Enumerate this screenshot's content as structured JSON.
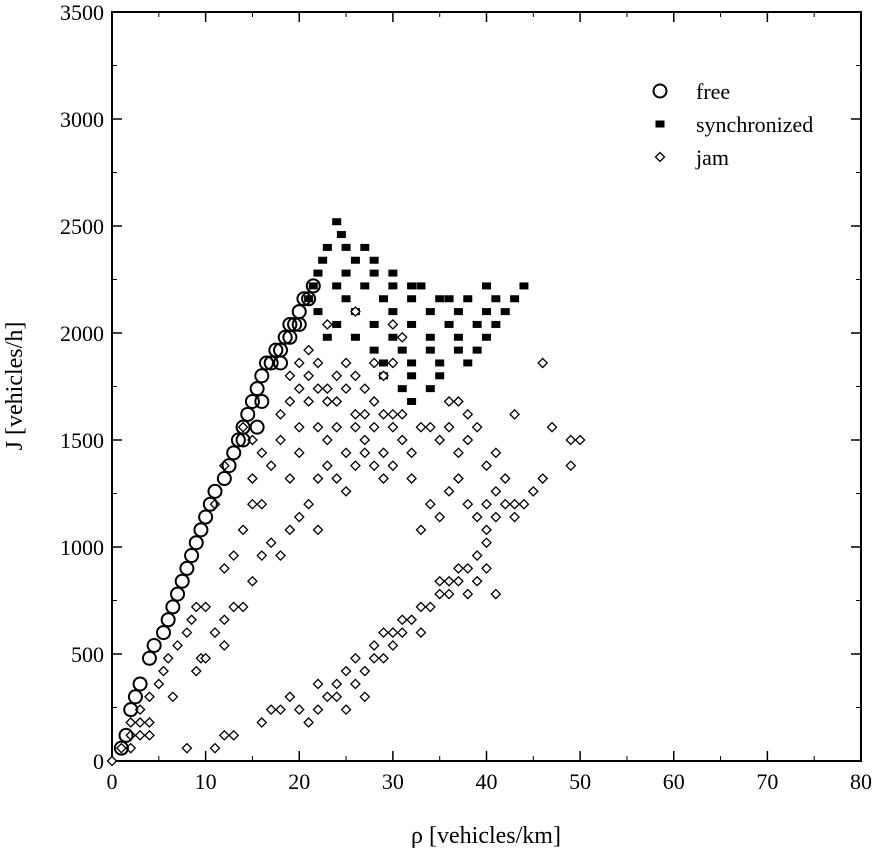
{
  "chart_data": {
    "type": "scatter",
    "title": "",
    "xlabel": "ρ [vehicles/km]",
    "ylabel": "J [vehicles/h]",
    "xlim": [
      0,
      80
    ],
    "ylim": [
      0,
      3500
    ],
    "xticks": [
      "0",
      "10",
      "20",
      "30",
      "40",
      "50",
      "60",
      "70",
      "80"
    ],
    "yticks": [
      "0",
      "500",
      "1000",
      "1500",
      "2000",
      "2500",
      "3000",
      "3500"
    ],
    "grid": false,
    "legend_position": "top-right",
    "series": [
      {
        "name": "free",
        "marker": "open-circle",
        "points": [
          [
            1,
            60
          ],
          [
            1.5,
            120
          ],
          [
            2,
            240
          ],
          [
            2.5,
            300
          ],
          [
            3,
            360
          ],
          [
            4,
            480
          ],
          [
            4.5,
            540
          ],
          [
            5.5,
            600
          ],
          [
            6,
            660
          ],
          [
            6.5,
            720
          ],
          [
            7,
            780
          ],
          [
            7.5,
            840
          ],
          [
            8,
            900
          ],
          [
            8.5,
            960
          ],
          [
            9,
            1020
          ],
          [
            9.5,
            1080
          ],
          [
            10,
            1140
          ],
          [
            10.5,
            1200
          ],
          [
            11,
            1260
          ],
          [
            12,
            1320
          ],
          [
            12.5,
            1380
          ],
          [
            13,
            1440
          ],
          [
            13.5,
            1500
          ],
          [
            14,
            1560
          ],
          [
            14.5,
            1620
          ],
          [
            15,
            1680
          ],
          [
            15.5,
            1740
          ],
          [
            16,
            1800
          ],
          [
            16.5,
            1860
          ],
          [
            17,
            1860
          ],
          [
            17.5,
            1920
          ],
          [
            18,
            1920
          ],
          [
            18.5,
            1980
          ],
          [
            19,
            2040
          ],
          [
            19.5,
            2040
          ],
          [
            20,
            2100
          ],
          [
            20.5,
            2160
          ],
          [
            21,
            2160
          ],
          [
            21.5,
            2220
          ],
          [
            15.5,
            1560
          ],
          [
            14,
            1500
          ],
          [
            16,
            1680
          ],
          [
            18,
            1860
          ],
          [
            19,
            1980
          ],
          [
            20,
            2040
          ]
        ]
      },
      {
        "name": "synchronized",
        "marker": "filled-square",
        "points": [
          [
            24,
            2520
          ],
          [
            24.5,
            2460
          ],
          [
            23,
            2400
          ],
          [
            25,
            2400
          ],
          [
            27,
            2400
          ],
          [
            22.5,
            2340
          ],
          [
            26,
            2340
          ],
          [
            28,
            2340
          ],
          [
            22,
            2280
          ],
          [
            25,
            2280
          ],
          [
            28,
            2280
          ],
          [
            30,
            2280
          ],
          [
            21.5,
            2220
          ],
          [
            24,
            2220
          ],
          [
            27,
            2220
          ],
          [
            30,
            2220
          ],
          [
            32,
            2220
          ],
          [
            21,
            2160
          ],
          [
            25,
            2160
          ],
          [
            29,
            2160
          ],
          [
            32,
            2160
          ],
          [
            36,
            2160
          ],
          [
            38,
            2160
          ],
          [
            41,
            2160
          ],
          [
            43,
            2160
          ],
          [
            22,
            2100
          ],
          [
            26,
            2100
          ],
          [
            30,
            2100
          ],
          [
            34,
            2100
          ],
          [
            37,
            2100
          ],
          [
            40,
            2100
          ],
          [
            42,
            2100
          ],
          [
            24,
            2040
          ],
          [
            28,
            2040
          ],
          [
            32,
            2040
          ],
          [
            36,
            2040
          ],
          [
            39,
            2040
          ],
          [
            41,
            2040
          ],
          [
            26,
            1980
          ],
          [
            30,
            1980
          ],
          [
            34,
            1980
          ],
          [
            37,
            1980
          ],
          [
            40,
            1980
          ],
          [
            28,
            1920
          ],
          [
            31,
            1920
          ],
          [
            34,
            1920
          ],
          [
            37,
            1920
          ],
          [
            39,
            1920
          ],
          [
            29,
            1860
          ],
          [
            32,
            1860
          ],
          [
            35,
            1860
          ],
          [
            38,
            1860
          ],
          [
            29,
            1800
          ],
          [
            32,
            1800
          ],
          [
            35,
            1800
          ],
          [
            31,
            1740
          ],
          [
            34,
            1740
          ],
          [
            32,
            1680
          ],
          [
            33,
            2220
          ],
          [
            40,
            2220
          ],
          [
            44,
            2220
          ],
          [
            23,
            1980
          ],
          [
            35,
            2160
          ]
        ]
      },
      {
        "name": "jam",
        "marker": "open-diamond",
        "points": [
          [
            0,
            0
          ],
          [
            1,
            60
          ],
          [
            2,
            60
          ],
          [
            2,
            120
          ],
          [
            3,
            120
          ],
          [
            4,
            120
          ],
          [
            3,
            180
          ],
          [
            4,
            180
          ],
          [
            3,
            240
          ],
          [
            4,
            300
          ],
          [
            2,
            180
          ],
          [
            5,
            360
          ],
          [
            8,
            60
          ],
          [
            11,
            60
          ],
          [
            12,
            120
          ],
          [
            13,
            120
          ],
          [
            5.5,
            420
          ],
          [
            6,
            480
          ],
          [
            6.5,
            300
          ],
          [
            7,
            540
          ],
          [
            8,
            600
          ],
          [
            8.5,
            660
          ],
          [
            9,
            720
          ],
          [
            9.5,
            480
          ],
          [
            10,
            720
          ],
          [
            11,
            600
          ],
          [
            12,
            660
          ],
          [
            12,
            900
          ],
          [
            13,
            960
          ],
          [
            14,
            1080
          ],
          [
            15,
            1200
          ],
          [
            16,
            1200
          ],
          [
            11,
            1200
          ],
          [
            12,
            1380
          ],
          [
            15,
            1320
          ],
          [
            17,
            1380
          ],
          [
            18,
            1500
          ],
          [
            18,
            1620
          ],
          [
            19,
            1800
          ],
          [
            20,
            1860
          ],
          [
            21,
            1920
          ],
          [
            22,
            1860
          ],
          [
            20,
            1560
          ],
          [
            21,
            1680
          ],
          [
            22,
            1560
          ],
          [
            23,
            1500
          ],
          [
            24,
            1560
          ],
          [
            25,
            1440
          ],
          [
            26,
            1560
          ],
          [
            27,
            1500
          ],
          [
            28,
            1560
          ],
          [
            29,
            1440
          ],
          [
            30,
            1560
          ],
          [
            31,
            1500
          ],
          [
            19,
            1320
          ],
          [
            20,
            1440
          ],
          [
            22,
            1320
          ],
          [
            23,
            1380
          ],
          [
            24,
            1320
          ],
          [
            25,
            1260
          ],
          [
            26,
            1380
          ],
          [
            27,
            1440
          ],
          [
            28,
            1380
          ],
          [
            29,
            1320
          ],
          [
            30,
            1380
          ],
          [
            32,
            1320
          ],
          [
            23,
            1740
          ],
          [
            24,
            1680
          ],
          [
            25,
            1740
          ],
          [
            26,
            1620
          ],
          [
            27,
            1620
          ],
          [
            28,
            1680
          ],
          [
            29,
            1620
          ],
          [
            30,
            1620
          ],
          [
            31,
            1620
          ],
          [
            32,
            1440
          ],
          [
            33,
            1560
          ],
          [
            34,
            1560
          ],
          [
            35,
            1500
          ],
          [
            36,
            1680
          ],
          [
            37,
            1680
          ],
          [
            38,
            1620
          ],
          [
            36,
            1560
          ],
          [
            37,
            1440
          ],
          [
            38,
            1500
          ],
          [
            39,
            1560
          ],
          [
            40,
            1380
          ],
          [
            41,
            1440
          ],
          [
            42,
            1320
          ],
          [
            43,
            1200
          ],
          [
            44,
            1200
          ],
          [
            45,
            1260
          ],
          [
            46,
            1320
          ],
          [
            47,
            1560
          ],
          [
            49,
            1500
          ],
          [
            50,
            1500
          ],
          [
            49,
            1380
          ],
          [
            46,
            1860
          ],
          [
            43,
            1620
          ],
          [
            34,
            1200
          ],
          [
            33,
            1080
          ],
          [
            35,
            1140
          ],
          [
            36,
            1260
          ],
          [
            37,
            1320
          ],
          [
            38,
            1200
          ],
          [
            39,
            1140
          ],
          [
            40,
            1080
          ],
          [
            41,
            1140
          ],
          [
            40,
            1020
          ],
          [
            39,
            960
          ],
          [
            38,
            900
          ],
          [
            37,
            840
          ],
          [
            36,
            840
          ],
          [
            35,
            780
          ],
          [
            34,
            720
          ],
          [
            33,
            720
          ],
          [
            32,
            660
          ],
          [
            31,
            600
          ],
          [
            30,
            540
          ],
          [
            29,
            480
          ],
          [
            28,
            480
          ],
          [
            27,
            420
          ],
          [
            26,
            480
          ],
          [
            25,
            420
          ],
          [
            24,
            360
          ],
          [
            23,
            300
          ],
          [
            22,
            240
          ],
          [
            21,
            180
          ],
          [
            20,
            240
          ],
          [
            19,
            300
          ],
          [
            18,
            240
          ],
          [
            17,
            240
          ],
          [
            16,
            180
          ],
          [
            22,
            360
          ],
          [
            24,
            300
          ],
          [
            25,
            240
          ],
          [
            26,
            360
          ],
          [
            27,
            300
          ],
          [
            28,
            540
          ],
          [
            29,
            600
          ],
          [
            30,
            600
          ],
          [
            31,
            660
          ],
          [
            33,
            600
          ],
          [
            35,
            840
          ],
          [
            36,
            780
          ],
          [
            37,
            900
          ],
          [
            38,
            780
          ],
          [
            39,
            840
          ],
          [
            40,
            900
          ],
          [
            41,
            780
          ],
          [
            42,
            1200
          ],
          [
            43,
            1140
          ],
          [
            40,
            1200
          ],
          [
            41,
            1260
          ],
          [
            17,
            1020
          ],
          [
            16,
            960
          ],
          [
            15,
            840
          ],
          [
            14,
            720
          ],
          [
            13,
            720
          ],
          [
            12,
            540
          ],
          [
            10,
            480
          ],
          [
            9,
            420
          ],
          [
            18,
            960
          ],
          [
            19,
            1080
          ],
          [
            20,
            1140
          ],
          [
            21,
            1200
          ],
          [
            22,
            1080
          ],
          [
            15,
            1500
          ],
          [
            14,
            1560
          ],
          [
            16,
            1440
          ],
          [
            19,
            1680
          ],
          [
            20,
            1740
          ],
          [
            21,
            1800
          ],
          [
            22,
            1740
          ],
          [
            23,
            1680
          ],
          [
            24,
            1800
          ],
          [
            25,
            1860
          ],
          [
            26,
            1800
          ],
          [
            27,
            1740
          ],
          [
            28,
            1860
          ],
          [
            29,
            1800
          ],
          [
            30,
            1860
          ],
          [
            31,
            1980
          ],
          [
            30,
            2040
          ],
          [
            26,
            2100
          ],
          [
            23,
            2040
          ]
        ]
      }
    ]
  }
}
